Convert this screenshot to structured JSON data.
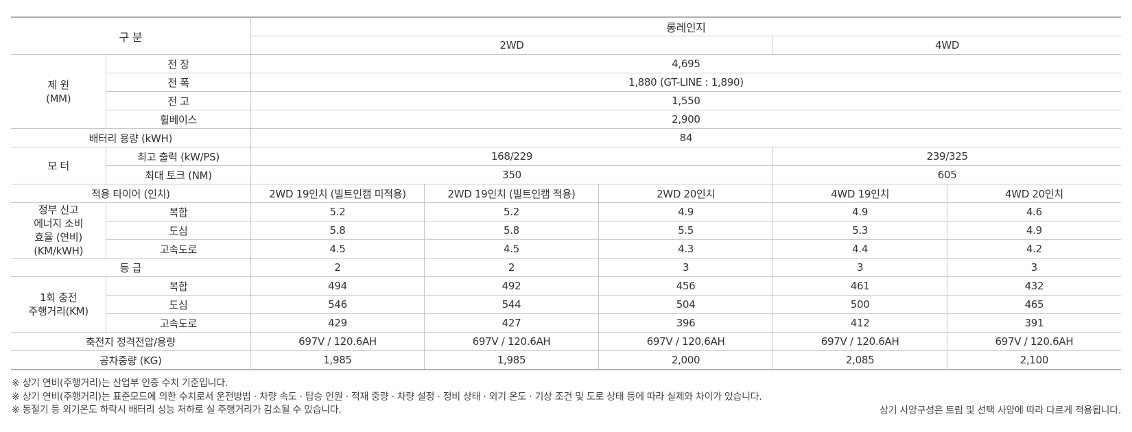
{
  "header": {
    "category": "구 분",
    "model": "롱레인지",
    "drive_2wd": "2WD",
    "drive_4wd": "4WD"
  },
  "dimensions": {
    "group_label": "제 원",
    "group_unit": "(MM)",
    "rows": [
      {
        "label": "전 장",
        "value": "4,695"
      },
      {
        "label": "전 폭",
        "value": "1,880 (GT-LINE : 1,890)"
      },
      {
        "label": "전 고",
        "value": "1,550"
      },
      {
        "label": "휠베이스",
        "value": "2,900"
      }
    ]
  },
  "battery": {
    "label": "배터리 용량 (kWH)",
    "value": "84"
  },
  "motor": {
    "group_label": "모 터",
    "rows": [
      {
        "label": "최고 출력 (kW/PS)",
        "v2wd": "168/229",
        "v4wd": "239/325"
      },
      {
        "label": "최대 토크 (NM)",
        "v2wd": "350",
        "v4wd": "605"
      }
    ]
  },
  "tires": {
    "label": "적용 타이어 (인치)",
    "values": [
      "2WD 19인치 (빌트인캠 미적용)",
      "2WD 19인치 (빌트인캠 적용)",
      "2WD 20인치",
      "4WD 19인치",
      "4WD 20인치"
    ]
  },
  "efficiency": {
    "group_label_lines": [
      "정부 신고",
      "에너지 소비",
      "효율 (연비)",
      "(KM/kWH)"
    ],
    "rows": [
      {
        "label": "복합",
        "values": [
          "5.2",
          "5.2",
          "4.9",
          "4.9",
          "4.6"
        ]
      },
      {
        "label": "도심",
        "values": [
          "5.8",
          "5.8",
          "5.5",
          "5.3",
          "4.9"
        ]
      },
      {
        "label": "고속도로",
        "values": [
          "4.5",
          "4.5",
          "4.3",
          "4.4",
          "4.2"
        ]
      }
    ]
  },
  "grade": {
    "label": "등 급",
    "values": [
      "2",
      "2",
      "3",
      "3",
      "3"
    ]
  },
  "range": {
    "group_label_lines": [
      "1회 충전",
      "주행거리(KM)"
    ],
    "rows": [
      {
        "label": "복합",
        "values": [
          "494",
          "492",
          "456",
          "461",
          "432"
        ]
      },
      {
        "label": "도심",
        "values": [
          "546",
          "544",
          "504",
          "500",
          "465"
        ]
      },
      {
        "label": "고속도로",
        "values": [
          "429",
          "427",
          "396",
          "412",
          "391"
        ]
      }
    ]
  },
  "battery_voltage": {
    "label": "축전지 정격전압/용량",
    "values": [
      "697V / 120.6AH",
      "697V / 120.6AH",
      "697V / 120.6AH",
      "697V / 120.6AH",
      "697V / 120.6AH"
    ]
  },
  "curb_weight": {
    "label": "공차중량 (KG)",
    "values": [
      "1,985",
      "1,985",
      "2,000",
      "2,085",
      "2,100"
    ]
  },
  "notes": [
    "※ 상기 연비(주행거리)는 산업부 인증 수치 기준입니다.",
    "※ 상기 연비(주행거리)는 표준모드에 의한 수치로서 운전방법 · 차량 속도 · 탑승 인원 · 적재 중량 · 차량 설정 · 정비 상태 · 외기 온도 · 기상 조건 및 도로 상태 등에 따라 실제와 차이가 있습니다.",
    "※ 동절기 등 외기온도 하락시 배터리 성능 저하로 실 주행거리가 감소될 수 있습니다."
  ],
  "note_right": "상기 사양구성은 트림 및 선택 사양에 따라 다르게 적용됩니다."
}
